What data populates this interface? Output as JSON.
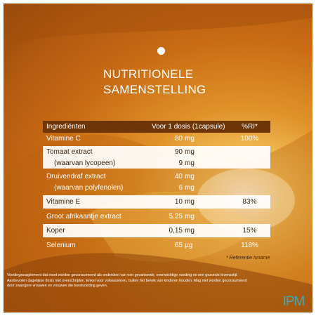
{
  "title_line1": "NUTRITIONELE",
  "title_line2": "SAMENSTELLING",
  "table": {
    "headers": [
      "Ingrediënten",
      "Voor 1 dosis (1capsule)",
      "%RI*"
    ],
    "rows": [
      {
        "name": "Vitamine C",
        "value": "80",
        "unit": "mg",
        "ri": "100%",
        "style": "dark"
      },
      {
        "name": "Tomaat extract",
        "value": "90",
        "unit": "mg",
        "ri": "",
        "style": "light"
      },
      {
        "name": "(waarvan lycopeen)",
        "value": "9",
        "unit": "mg",
        "ri": "",
        "style": "light",
        "indent": true
      },
      {
        "name": "Druivendraf extract",
        "value": "40",
        "unit": "mg",
        "ri": "",
        "style": "dark"
      },
      {
        "name": "(waarvan polyfenolen)",
        "value": "6",
        "unit": "mg",
        "ri": "",
        "style": "dark",
        "indent": true
      },
      {
        "name": "Vitamine E",
        "value": "10",
        "unit": "mg",
        "ri": "83%",
        "style": "light"
      },
      {
        "name": "Groot afrikaantje extract",
        "value": "5,25",
        "unit": "mg",
        "ri": "",
        "style": "dark"
      },
      {
        "name": "Koper",
        "value": "0,15",
        "unit": "mg",
        "ri": "15%",
        "style": "light"
      },
      {
        "name": "Selenium",
        "value": "65",
        "unit": "µg",
        "ri": "118%",
        "style": "dark"
      }
    ]
  },
  "reference_note": "* Referentie Inname",
  "footnote": [
    "Voedingssupplement dat moet worden geconsumeerd als onderdeel van een gevarieerde, evenwichtige voeding en een gezonde levensstijl.",
    "Aanbevolen dagelijkse dosis niet overschrijden. Enkel voor volwassenen, buiten het bereik van kinderen houden. Mag niet worden geconsumeerd",
    "door zwangere vrouwen en vrouwen die borstvoeding geven."
  ],
  "logo_text": "IPM",
  "colors": {
    "header_bg": "#6d3508",
    "light_row": "#ffffff",
    "logo": "#3fa9b5",
    "panel": "#d98a25"
  }
}
